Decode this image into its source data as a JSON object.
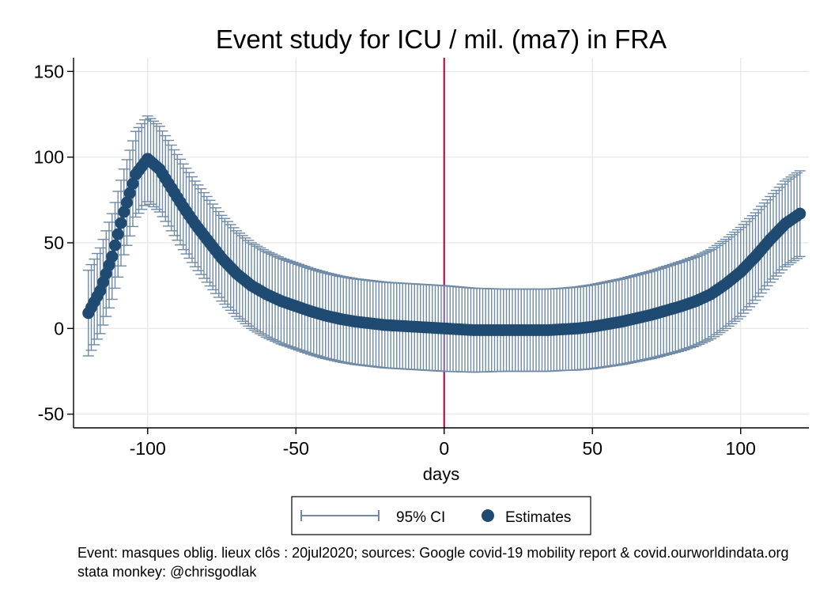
{
  "chart_data": {
    "type": "scatter",
    "title": "Event study for ICU / mil. (ma7) in FRA",
    "xlabel": "days",
    "ylabel": "",
    "xlim": [
      -125,
      123
    ],
    "ylim": [
      -58,
      158
    ],
    "xticks": [
      -100,
      -50,
      0,
      50,
      100
    ],
    "yticks": [
      -50,
      0,
      50,
      100,
      150
    ],
    "x_range": [
      -120,
      120
    ],
    "grid": true,
    "event_line_x": 0,
    "colors": {
      "estimates": "#1f4a72",
      "ci": "#6e8aa6",
      "event_line": "#b0003a",
      "grid": "#e6e6e6"
    },
    "legend": {
      "position": "bottom",
      "entries": [
        "95% CI",
        "Estimates"
      ]
    },
    "estimate_knots": {
      "x": [
        -120,
        -116,
        -112,
        -108,
        -104,
        -100,
        -96,
        -92,
        -88,
        -84,
        -80,
        -75,
        -70,
        -65,
        -60,
        -55,
        -50,
        -45,
        -40,
        -35,
        -30,
        -25,
        -20,
        -15,
        -10,
        -5,
        0,
        5,
        10,
        15,
        20,
        25,
        30,
        35,
        40,
        45,
        50,
        55,
        60,
        65,
        70,
        75,
        80,
        85,
        90,
        95,
        100,
        105,
        110,
        115,
        120
      ],
      "y": [
        9,
        22,
        42,
        68,
        90,
        99,
        93,
        82,
        71,
        61,
        52,
        41,
        32,
        25,
        20,
        16,
        13,
        10,
        7.5,
        5.5,
        4,
        3,
        2,
        1.5,
        1,
        0.5,
        0,
        -0.5,
        -1,
        -1,
        -1,
        -1,
        -1,
        -1,
        -0.5,
        0,
        1,
        2.5,
        4,
        6,
        8,
        10.5,
        13,
        16,
        20,
        26,
        33,
        42,
        52,
        61,
        67
      ]
    },
    "ci_halfwidth_knots": {
      "x": [
        -120,
        -110,
        -100,
        -90,
        -80,
        -60,
        -40,
        -20,
        0,
        20,
        40,
        60,
        80,
        90,
        100,
        110,
        120
      ],
      "y": [
        25,
        25,
        25,
        25,
        25,
        25,
        25,
        25,
        25,
        24,
        24,
        25,
        26,
        26,
        26,
        25,
        25
      ]
    }
  },
  "legend": {
    "ci_label": "95% CI",
    "estimates_label": "Estimates"
  },
  "footnote": {
    "line1": "Event: masques oblig. lieux clôs : 20jul2020; sources: Google covid-19 mobility report & covid.ourworldindata.org",
    "line2": "stata monkey: @chrisgodlak"
  }
}
